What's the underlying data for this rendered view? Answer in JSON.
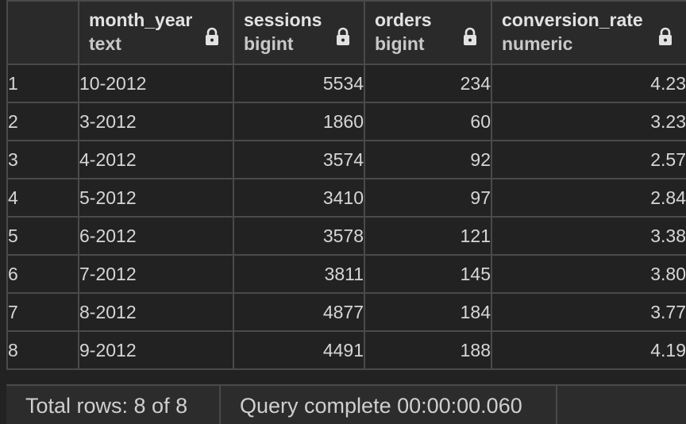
{
  "columns": [
    {
      "name": "month_year",
      "type": "text"
    },
    {
      "name": "sessions",
      "type": "bigint"
    },
    {
      "name": "orders",
      "type": "bigint"
    },
    {
      "name": "conversion_rate",
      "type": "numeric"
    }
  ],
  "rows": [
    {
      "num": "1",
      "month_year": "10-2012",
      "sessions": "5534",
      "orders": "234",
      "conversion_rate": "4.23"
    },
    {
      "num": "2",
      "month_year": "3-2012",
      "sessions": "1860",
      "orders": "60",
      "conversion_rate": "3.23"
    },
    {
      "num": "3",
      "month_year": "4-2012",
      "sessions": "3574",
      "orders": "92",
      "conversion_rate": "2.57"
    },
    {
      "num": "4",
      "month_year": "5-2012",
      "sessions": "3410",
      "orders": "97",
      "conversion_rate": "2.84"
    },
    {
      "num": "5",
      "month_year": "6-2012",
      "sessions": "3578",
      "orders": "121",
      "conversion_rate": "3.38"
    },
    {
      "num": "6",
      "month_year": "7-2012",
      "sessions": "3811",
      "orders": "145",
      "conversion_rate": "3.80"
    },
    {
      "num": "7",
      "month_year": "8-2012",
      "sessions": "4877",
      "orders": "184",
      "conversion_rate": "3.77"
    },
    {
      "num": "8",
      "month_year": "9-2012",
      "sessions": "4491",
      "orders": "188",
      "conversion_rate": "4.19"
    }
  ],
  "footer": {
    "total_rows": "Total rows: 8 of 8",
    "query_status": "Query complete 00:00:00.060"
  },
  "colors": {
    "background": "#222222",
    "header_background": "#2a2a2a",
    "border": "#4a4a4a",
    "text": "#d6d6d6"
  },
  "icons": {
    "column_lock": "lock-icon"
  }
}
